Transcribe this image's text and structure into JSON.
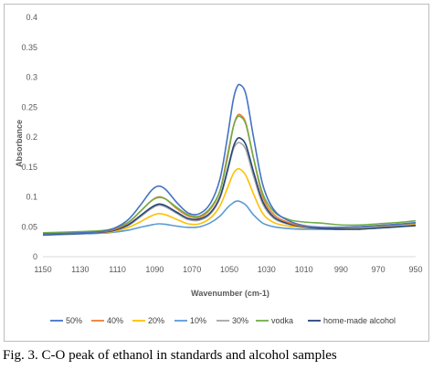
{
  "caption": "Fig. 3. C-O peak of ethanol in standards and alcohol samples",
  "chart_data": {
    "type": "line",
    "xlabel": "Wavenumber (cm-1)",
    "ylabel": "Absorbance",
    "xlim": [
      1150,
      950
    ],
    "x_reversed": true,
    "ylim": [
      0,
      0.4
    ],
    "x_ticks": [
      "1150",
      "1130",
      "1110",
      "1090",
      "1070",
      "1050",
      "1030",
      "1010",
      "990",
      "970",
      "950"
    ],
    "y_ticks": [
      "0",
      "0.05",
      "0.1",
      "0.15",
      "0.2",
      "0.25",
      "0.3",
      "0.35",
      "0.4"
    ],
    "grid": false,
    "legend_position": "bottom",
    "x": [
      1150,
      1130,
      1115,
      1105,
      1098,
      1092,
      1088,
      1084,
      1078,
      1072,
      1066,
      1060,
      1055,
      1051,
      1048,
      1046,
      1044,
      1041,
      1037,
      1032,
      1026,
      1018,
      1010,
      1000,
      990,
      980,
      970,
      960,
      950
    ],
    "series": [
      {
        "name": "50%",
        "color": "#4472C4",
        "values": [
          0.038,
          0.04,
          0.044,
          0.06,
          0.085,
          0.11,
          0.118,
          0.112,
          0.09,
          0.073,
          0.072,
          0.09,
          0.13,
          0.2,
          0.26,
          0.283,
          0.287,
          0.27,
          0.2,
          0.12,
          0.078,
          0.06,
          0.052,
          0.049,
          0.049,
          0.05,
          0.052,
          0.054,
          0.057
        ]
      },
      {
        "name": "40%",
        "color": "#ED7D31",
        "values": [
          0.038,
          0.04,
          0.043,
          0.055,
          0.075,
          0.093,
          0.1,
          0.096,
          0.08,
          0.068,
          0.066,
          0.08,
          0.11,
          0.17,
          0.215,
          0.234,
          0.237,
          0.222,
          0.165,
          0.1,
          0.07,
          0.057,
          0.051,
          0.049,
          0.049,
          0.05,
          0.052,
          0.054,
          0.056
        ]
      },
      {
        "name": "20%",
        "color": "#FFC000",
        "values": [
          0.037,
          0.039,
          0.041,
          0.048,
          0.058,
          0.068,
          0.072,
          0.07,
          0.062,
          0.055,
          0.055,
          0.065,
          0.085,
          0.115,
          0.138,
          0.146,
          0.146,
          0.135,
          0.105,
          0.072,
          0.057,
          0.051,
          0.049,
          0.048,
          0.048,
          0.049,
          0.05,
          0.052,
          0.055
        ]
      },
      {
        "name": "10%",
        "color": "#5B9BD5",
        "values": [
          0.036,
          0.038,
          0.04,
          0.044,
          0.049,
          0.053,
          0.055,
          0.054,
          0.051,
          0.049,
          0.05,
          0.057,
          0.068,
          0.082,
          0.09,
          0.093,
          0.092,
          0.086,
          0.07,
          0.056,
          0.05,
          0.047,
          0.046,
          0.046,
          0.046,
          0.047,
          0.048,
          0.05,
          0.053
        ]
      },
      {
        "name": "30%",
        "color": "#A5A5A5",
        "values": [
          0.037,
          0.039,
          0.042,
          0.051,
          0.066,
          0.08,
          0.086,
          0.083,
          0.072,
          0.062,
          0.061,
          0.072,
          0.098,
          0.142,
          0.178,
          0.189,
          0.19,
          0.178,
          0.135,
          0.088,
          0.064,
          0.054,
          0.05,
          0.049,
          0.049,
          0.05,
          0.051,
          0.053,
          0.056
        ]
      },
      {
        "name": "vodka",
        "color": "#70AD47",
        "values": [
          0.04,
          0.042,
          0.045,
          0.056,
          0.075,
          0.093,
          0.099,
          0.096,
          0.082,
          0.07,
          0.068,
          0.082,
          0.11,
          0.165,
          0.215,
          0.232,
          0.234,
          0.22,
          0.165,
          0.105,
          0.075,
          0.062,
          0.058,
          0.056,
          0.053,
          0.053,
          0.055,
          0.057,
          0.06
        ]
      },
      {
        "name": "home-made alcohol",
        "color": "#264478",
        "values": [
          0.037,
          0.039,
          0.042,
          0.052,
          0.068,
          0.082,
          0.088,
          0.085,
          0.074,
          0.064,
          0.063,
          0.074,
          0.1,
          0.145,
          0.182,
          0.196,
          0.198,
          0.186,
          0.142,
          0.092,
          0.066,
          0.055,
          0.05,
          0.047,
          0.046,
          0.046,
          0.048,
          0.05,
          0.052
        ]
      }
    ]
  }
}
